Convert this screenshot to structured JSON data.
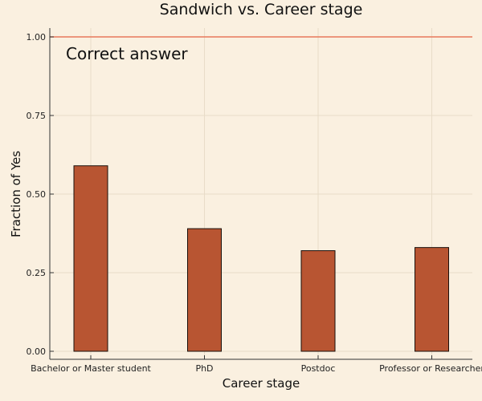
{
  "chart_data": {
    "type": "bar",
    "title": "Sandwich vs. Career stage",
    "xlabel": "Career stage",
    "ylabel": "Fraction of Yes",
    "categories": [
      "Bachelor or Master student",
      "PhD",
      "Postdoc",
      "Professor or Researcher"
    ],
    "values": [
      0.59,
      0.39,
      0.32,
      0.33
    ],
    "ylim": [
      0,
      1.0
    ],
    "yticks": [
      "0.00",
      "0.25",
      "0.50",
      "0.75",
      "1.00"
    ],
    "reference_line": {
      "value": 1.0,
      "label": "Correct answer",
      "color": "#e8795a"
    },
    "bar_color": "#b85532",
    "background_color": "#faf0e0",
    "grid": true,
    "legend": "none"
  }
}
